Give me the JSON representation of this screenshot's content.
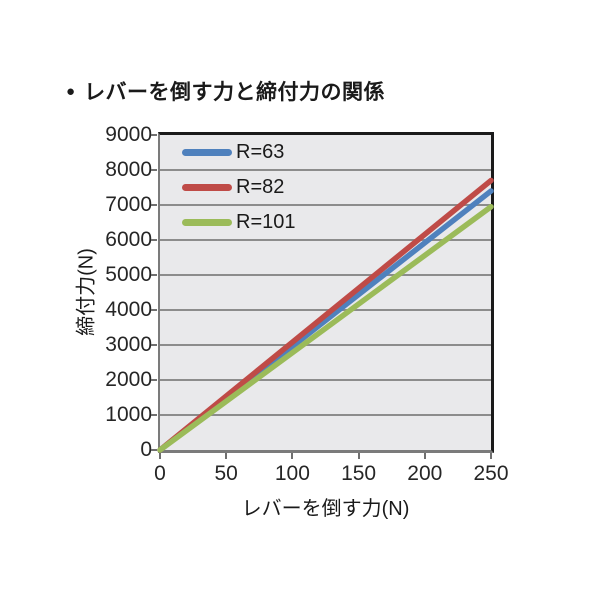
{
  "title": {
    "bullet": "●",
    "text": "レバーを倒す力と締付力の関係"
  },
  "chart_data": {
    "type": "line",
    "title": "レバーを倒す力と締付力の関係",
    "xlabel": "レバーを倒す力(N)",
    "ylabel": "締付力(N)",
    "xlim": [
      0,
      250
    ],
    "ylim": [
      0,
      9000
    ],
    "xticks": [
      0,
      50,
      100,
      150,
      200,
      250
    ],
    "yticks": [
      0,
      1000,
      2000,
      3000,
      4000,
      5000,
      6000,
      7000,
      8000,
      9000
    ],
    "grid": "horizontal",
    "legend_position": "inside-top-left",
    "plot_bg_color": "#E9E9EB",
    "grid_color": "#8c8c8c",
    "series": [
      {
        "name": "R=63",
        "color": "#4F81BD",
        "x": [
          0,
          250
        ],
        "y": [
          0,
          7400
        ]
      },
      {
        "name": "R=82",
        "color": "#BF4B47",
        "x": [
          0,
          250
        ],
        "y": [
          0,
          7700
        ]
      },
      {
        "name": "R=101",
        "color": "#9BBB59",
        "x": [
          0,
          250
        ],
        "y": [
          0,
          6950
        ]
      }
    ]
  }
}
